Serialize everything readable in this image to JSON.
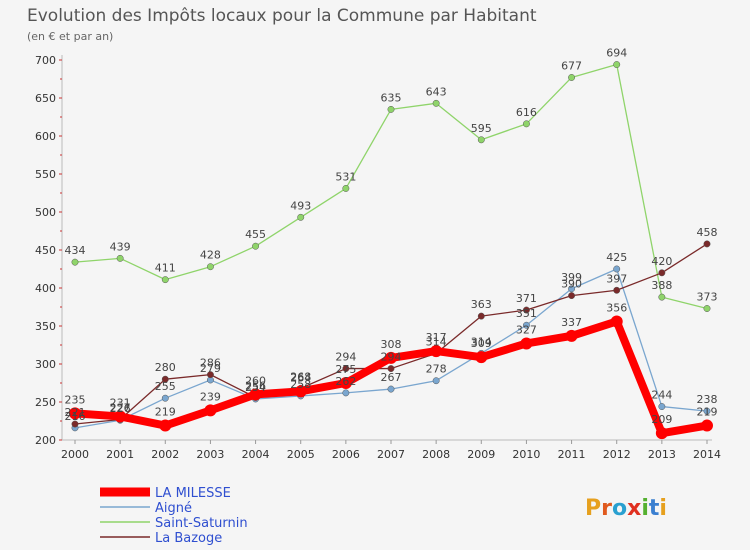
{
  "chart_data": {
    "type": "line",
    "title": "Evolution des Impôts locaux pour la Commune par Habitant",
    "subtitle": "(en € et par an)",
    "xlabel": "",
    "ylabel": "",
    "x": [
      "2000",
      "2001",
      "2002",
      "2003",
      "2004",
      "2005",
      "2006",
      "2007",
      "2008",
      "2009",
      "2010",
      "2011",
      "2012",
      "2013",
      "2014"
    ],
    "ylim": [
      200,
      700
    ],
    "yticks": [
      200,
      250,
      300,
      350,
      400,
      450,
      500,
      550,
      600,
      650,
      700
    ],
    "grid": false,
    "legend_position": "bottom-left",
    "series": [
      {
        "name": "LA MILESSE",
        "color": "#ff0000",
        "values": [
          235,
          231,
          219,
          239,
          260,
          264,
          275,
          308,
          317,
          309,
          327,
          337,
          356,
          209,
          219
        ]
      },
      {
        "name": "Aigné",
        "color": "#7aa6cf",
        "values": [
          216,
          226,
          255,
          279,
          254,
          258,
          262,
          267,
          278,
          314,
          351,
          399,
          425,
          244,
          238
        ]
      },
      {
        "name": "Saint-Saturnin",
        "color": "#8fd46a",
        "values": [
          434,
          439,
          411,
          428,
          455,
          493,
          531,
          635,
          643,
          595,
          616,
          677,
          694,
          388,
          373
        ]
      },
      {
        "name": "La Bazoge",
        "color": "#7a2a2a",
        "values": [
          221,
          227,
          280,
          286,
          256,
          268,
          294,
          294,
          314,
          363,
          371,
          390,
          397,
          420,
          458
        ]
      }
    ]
  },
  "logo": {
    "text": "Proxiti"
  }
}
